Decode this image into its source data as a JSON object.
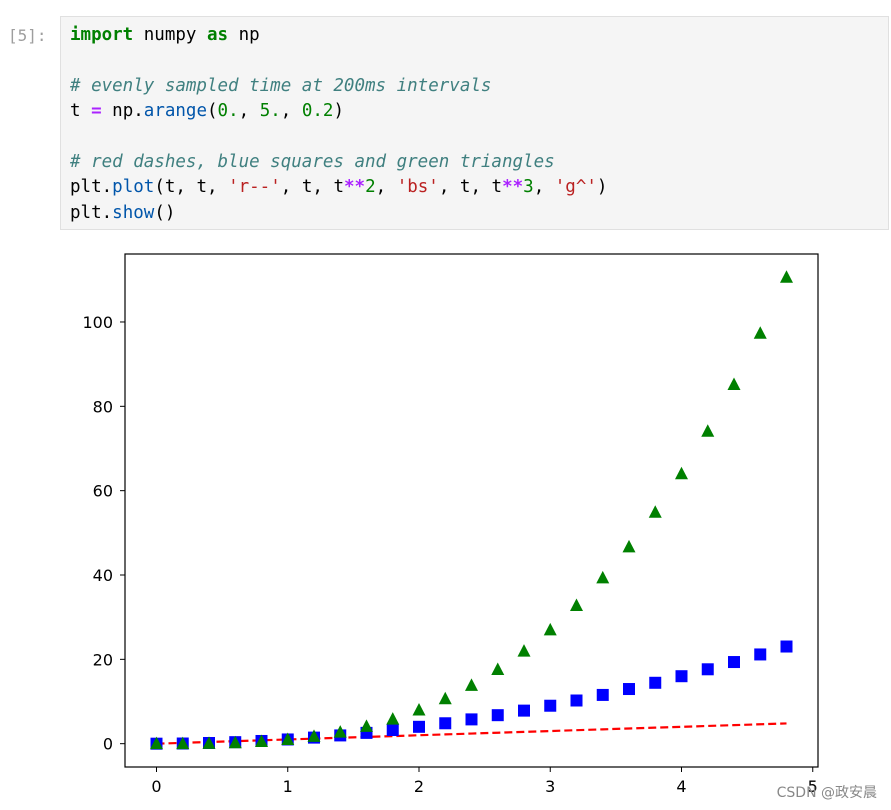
{
  "cell": {
    "prompt": "[5]:",
    "code": {
      "line1": {
        "kw1": "import",
        "mod": " numpy ",
        "kw2": "as",
        "alias": " np"
      },
      "line3": "# evenly sampled time at 200ms intervals",
      "line4": {
        "var": "t ",
        "eq": "=",
        "call_pre": " np.",
        "fn": "arange",
        "open": "(",
        "a": "0.",
        "sep1": ", ",
        "b": "5.",
        "sep2": ", ",
        "c": "0.2",
        "close": ")"
      },
      "line6": "# red dashes, blue squares and green triangles",
      "line7": {
        "pre": "plt.",
        "fn": "plot",
        "p1": "(t, t, ",
        "s1": "'r--'",
        "p2": ", t, t",
        "op1": "**",
        "n1": "2",
        "p3": ", ",
        "s2": "'bs'",
        "p4": ", t, t",
        "op2": "**",
        "n2": "3",
        "p5": ", ",
        "s3": "'g^'",
        "p6": ")"
      },
      "line8": {
        "pre": "plt.",
        "fn": "show",
        "post": "()"
      }
    }
  },
  "chart_data": {
    "type": "scatter",
    "x": [
      0.0,
      0.2,
      0.4,
      0.6,
      0.8,
      1.0,
      1.2,
      1.4,
      1.6,
      1.8,
      2.0,
      2.2,
      2.4,
      2.6,
      2.8,
      3.0,
      3.2,
      3.4,
      3.6,
      3.8,
      4.0,
      4.2,
      4.4,
      4.6,
      4.8
    ],
    "series": [
      {
        "style": "dashed-line",
        "color": "#ff0000",
        "values": [
          0.0,
          0.2,
          0.4,
          0.6,
          0.8,
          1.0,
          1.2,
          1.4,
          1.6,
          1.8,
          2.0,
          2.2,
          2.4,
          2.6,
          2.8,
          3.0,
          3.2,
          3.4,
          3.6,
          3.8,
          4.0,
          4.2,
          4.4,
          4.6,
          4.8
        ]
      },
      {
        "style": "square-markers",
        "color": "#0000ff",
        "values": [
          0.0,
          0.04,
          0.16,
          0.36,
          0.64,
          1.0,
          1.44,
          1.96,
          2.56,
          3.24,
          4.0,
          4.84,
          5.76,
          6.76,
          7.84,
          9.0,
          10.24,
          11.56,
          12.96,
          14.44,
          16.0,
          17.64,
          19.36,
          21.16,
          23.04
        ]
      },
      {
        "style": "triangle-markers",
        "color": "#008000",
        "values": [
          0.0,
          0.008,
          0.064,
          0.216,
          0.512,
          1.0,
          1.728,
          2.744,
          4.096,
          5.832,
          8.0,
          10.648,
          13.824,
          17.576,
          21.952,
          27.0,
          32.768,
          39.304,
          46.656,
          54.872,
          64.0,
          74.088,
          85.184,
          97.336,
          110.592
        ]
      }
    ],
    "xticks": [
      "0",
      "1",
      "2",
      "3",
      "4",
      "5"
    ],
    "yticks": [
      "0",
      "20",
      "40",
      "60",
      "80",
      "100"
    ],
    "xlim": [
      -0.24,
      5.04
    ],
    "ylim": [
      -5.53,
      116.12
    ],
    "grid": false
  },
  "watermark": "CSDN @政安晨"
}
